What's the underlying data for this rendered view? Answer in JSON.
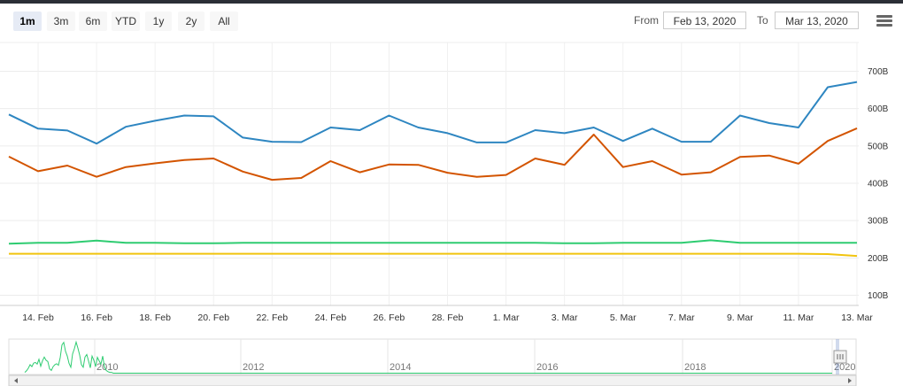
{
  "range_selector": {
    "buttons": [
      "1m",
      "3m",
      "6m",
      "YTD",
      "1y",
      "2y",
      "All"
    ],
    "selected": "1m",
    "from_label": "From",
    "from_value": "Feb 13, 2020",
    "to_label": "To",
    "to_value": "Mar 13, 2020"
  },
  "menu_icon": "hamburger-menu-icon",
  "chart_data": {
    "type": "line",
    "title": "",
    "xlabel": "",
    "ylabel": "",
    "x_dates": [
      "2020-02-13",
      "2020-02-14",
      "2020-02-15",
      "2020-02-16",
      "2020-02-17",
      "2020-02-18",
      "2020-02-19",
      "2020-02-20",
      "2020-02-21",
      "2020-02-22",
      "2020-02-23",
      "2020-02-24",
      "2020-02-25",
      "2020-02-26",
      "2020-02-27",
      "2020-02-28",
      "2020-02-29",
      "2020-03-01",
      "2020-03-02",
      "2020-03-03",
      "2020-03-04",
      "2020-03-05",
      "2020-03-06",
      "2020-03-07",
      "2020-03-08",
      "2020-03-09",
      "2020-03-10",
      "2020-03-11",
      "2020-03-12",
      "2020-03-13"
    ],
    "xtick_labels": [
      "14. Feb",
      "16. Feb",
      "18. Feb",
      "20. Feb",
      "22. Feb",
      "24. Feb",
      "26. Feb",
      "28. Feb",
      "1. Mar",
      "3. Mar",
      "5. Mar",
      "7. Mar",
      "9. Mar",
      "11. Mar",
      "13. Mar"
    ],
    "ytick_labels": [
      "100B",
      "200B",
      "300B",
      "400B",
      "500B",
      "600B",
      "700B"
    ],
    "ytick_values": [
      100,
      200,
      300,
      400,
      500,
      600,
      700
    ],
    "ylim": [
      50,
      760
    ],
    "y_unit": "B",
    "grid": true,
    "series": [
      {
        "color": "#2e86c1",
        "values": [
          595,
          557,
          552,
          517,
          562,
          578,
          592,
          590,
          533,
          522,
          521,
          560,
          553,
          592,
          560,
          545,
          520,
          520,
          553,
          545,
          560,
          524,
          557,
          522,
          522,
          592,
          572,
          560,
          668,
          682
        ]
      },
      {
        "color": "#d35400",
        "values": [
          482,
          443,
          458,
          428,
          454,
          464,
          473,
          477,
          442,
          420,
          425,
          470,
          440,
          461,
          460,
          439,
          428,
          433,
          477,
          460,
          541,
          454,
          470,
          434,
          440,
          481,
          485,
          463,
          524,
          558
        ]
      },
      {
        "color": "#2ecc71",
        "values": [
          249,
          251,
          251,
          257,
          251,
          251,
          250,
          250,
          251,
          251,
          251,
          251,
          251,
          251,
          251,
          251,
          251,
          251,
          251,
          250,
          250,
          251,
          251,
          251,
          258,
          251,
          251,
          251,
          251,
          251
        ]
      },
      {
        "color": "#f1c40f",
        "values": [
          222,
          222,
          222,
          222,
          222,
          222,
          222,
          222,
          222,
          222,
          222,
          222,
          222,
          222,
          222,
          222,
          222,
          222,
          222,
          222,
          222,
          222,
          222,
          222,
          222,
          222,
          222,
          222,
          221,
          216
        ]
      }
    ]
  },
  "navigator": {
    "year_labels": [
      "2010",
      "2012",
      "2014",
      "2016",
      "2018",
      "2020"
    ],
    "line_color": "#2ecc71",
    "series_values": [
      0.04,
      0.09,
      0.17,
      0.28,
      0.22,
      0.33,
      0.35,
      0.3,
      0.45,
      0.23,
      0.4,
      0.52,
      0.42,
      0.38,
      0.15,
      0.1,
      0.22,
      0.28,
      0.31,
      0.26,
      0.5,
      0.9,
      0.98,
      0.7,
      0.55,
      0.32,
      0.2,
      0.62,
      0.78,
      0.99,
      0.8,
      0.58,
      0.28,
      0.2,
      0.52,
      0.6,
      0.4,
      0.18,
      0.55,
      0.42,
      0.22,
      0.51,
      0.4,
      0.3,
      0.55,
      0.2,
      0.1,
      0.06,
      0.04,
      0.04
    ]
  }
}
